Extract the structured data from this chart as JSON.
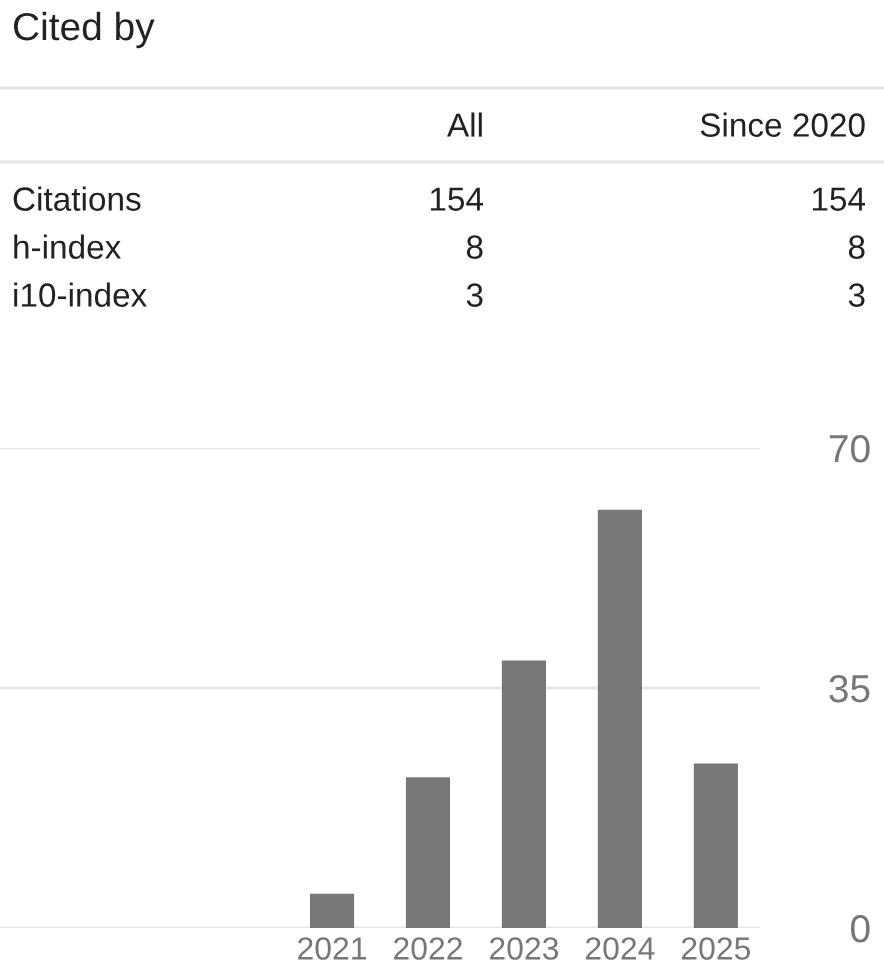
{
  "chart_data": [
    {
      "type": "other",
      "title": "Cited by",
      "annotations": [
        "All",
        "Since 2020",
        "Citations",
        "154",
        "154",
        "h-index",
        "8",
        "8",
        "i10-index",
        "3",
        "3"
      ]
    },
    {
      "type": "bar",
      "categories": [
        "2021",
        "2022",
        "2023",
        "2024",
        "2025"
      ],
      "values": [
        5,
        22,
        39,
        61,
        24
      ],
      "color": "#777777",
      "ylim": [
        0,
        70
      ],
      "yticks": [
        0,
        35,
        70
      ],
      "grid": "y"
    }
  ]
}
